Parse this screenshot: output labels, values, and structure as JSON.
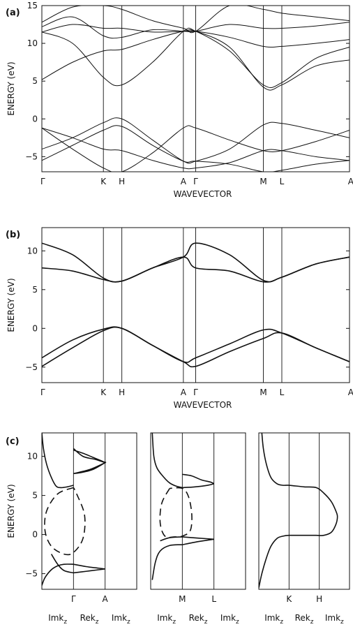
{
  "chart_data": [
    {
      "panel": "(a)",
      "type": "line",
      "xlabel": "WAVEVECTOR",
      "ylabel": "ENERGY (eV)",
      "ylim": [
        -7,
        15
      ],
      "yticks": [
        -5,
        0,
        5,
        10,
        15
      ],
      "kpoints": [
        "Γ",
        "K",
        "H",
        "A",
        "Γ",
        "M",
        "L",
        "A"
      ],
      "kpos": [
        0,
        1,
        1.3,
        2.3,
        2.5,
        3.6,
        3.9,
        5.0
      ],
      "series": [
        {
          "x": [
            0,
            0.5,
            1,
            1.3,
            1.8,
            2.3,
            2.5,
            3.05,
            3.6,
            3.9,
            4.45,
            5.0
          ],
          "y": [
            -1.2,
            -2.5,
            -4,
            -4.2,
            -5.5,
            -6.5,
            -6.5,
            -5.8,
            -4.2,
            -4.2,
            -5,
            -5.5
          ]
        },
        {
          "x": [
            0,
            0.5,
            1,
            1.3,
            1.8,
            2.3,
            2.5,
            3.05,
            3.6,
            3.9,
            4.45,
            5.0
          ],
          "y": [
            -1.2,
            -4,
            -6.5,
            -7,
            -4.5,
            -1.2,
            -1.2,
            -2.8,
            -4.2,
            -4.2,
            -3,
            -1.5
          ]
        },
        {
          "x": [
            0,
            0.5,
            1,
            1.3,
            1.8,
            2.3,
            2.5,
            3.05,
            3.6,
            3.9,
            4.45,
            5.0
          ],
          "y": [
            -4,
            -2.5,
            -0.5,
            0,
            -2.8,
            -5.6,
            -5.6,
            -4,
            -0.8,
            -0.6,
            -1.5,
            -2.5
          ]
        },
        {
          "x": [
            0,
            0.5,
            1,
            1.3,
            1.8,
            2.3,
            2.5,
            3.05,
            3.6,
            3.9,
            4.45,
            5.0
          ],
          "y": [
            -5.5,
            -3.5,
            -1.5,
            -1,
            -3.5,
            -5.6,
            -5.6,
            -6,
            -7,
            -6.8,
            -6,
            -5.5
          ]
        },
        {
          "x": [
            0,
            0.5,
            1,
            1.3,
            1.8,
            2.3,
            2.5,
            3.05,
            3.6,
            3.9,
            4.45,
            5.0
          ],
          "y": [
            5.2,
            7.5,
            9,
            9.2,
            10.5,
            11.6,
            11.6,
            9.5,
            4.2,
            4.5,
            7,
            7.8
          ]
        },
        {
          "x": [
            0,
            0.5,
            1,
            1.3,
            1.8,
            2.3,
            2.5,
            3.05,
            3.6,
            3.9,
            4.45,
            5.0
          ],
          "y": [
            11.5,
            10,
            5.5,
            4.5,
            7.5,
            11.6,
            11.6,
            9,
            4.5,
            4.8,
            8,
            9.5
          ]
        },
        {
          "x": [
            0,
            0.5,
            1,
            1.3,
            1.8,
            2.3,
            2.5,
            3.05,
            3.6,
            3.9,
            4.45,
            5.0
          ],
          "y": [
            11.5,
            12.5,
            12,
            12,
            11.5,
            11.6,
            11.6,
            10.8,
            9.6,
            9.6,
            10,
            10.5
          ]
        },
        {
          "x": [
            0,
            0.5,
            1,
            1.3,
            1.8,
            2.3,
            2.5,
            3.05,
            3.6,
            3.9,
            4.45,
            5.0
          ],
          "y": [
            12.2,
            13.5,
            11,
            10.8,
            11.8,
            11.6,
            11.6,
            12.5,
            12,
            12,
            12.3,
            12.8
          ]
        },
        {
          "x": [
            0,
            0.5,
            1,
            1.3,
            1.8,
            2.3,
            2.5,
            3.05,
            3.6,
            3.9,
            4.45,
            5.0
          ],
          "y": [
            12.8,
            14.8,
            15,
            14.5,
            13,
            12,
            11.6,
            15,
            14.5,
            14,
            13.5,
            13
          ]
        }
      ]
    },
    {
      "panel": "(b)",
      "type": "line",
      "xlabel": "WAVEVECTOR",
      "ylabel": "ENERGY (eV)",
      "ylim": [
        -7,
        13
      ],
      "yticks": [
        -5,
        0,
        5,
        10
      ],
      "kpoints": [
        "Γ",
        "K",
        "H",
        "A",
        "Γ",
        "M",
        "L",
        "A"
      ],
      "kpos": [
        0,
        1,
        1.3,
        2.3,
        2.5,
        3.6,
        3.9,
        5.0
      ],
      "series": [
        {
          "x": [
            0,
            0.5,
            1,
            1.3,
            1.8,
            2.3,
            2.5,
            3.05,
            3.6,
            3.9,
            4.45,
            5.0
          ],
          "y": [
            11,
            9.5,
            6.5,
            6.1,
            7.8,
            9.2,
            11,
            9.5,
            6.2,
            6.6,
            8.3,
            9.2
          ]
        },
        {
          "x": [
            0,
            0.5,
            1,
            1.3,
            1.8,
            2.3,
            2.5,
            3.05,
            3.6,
            3.9,
            4.45,
            5.0
          ],
          "y": [
            7.8,
            7.4,
            6.3,
            6.1,
            7.8,
            9.2,
            7.8,
            7.4,
            6.0,
            6.6,
            8.3,
            9.2
          ]
        },
        {
          "x": [
            0,
            0.5,
            1,
            1.3,
            1.8,
            2.3,
            2.5,
            3.05,
            3.6,
            3.9,
            4.45,
            5.0
          ],
          "y": [
            -3.8,
            -1.5,
            -0.1,
            0,
            -2.2,
            -4.3,
            -3.8,
            -2.0,
            -0.2,
            -0.6,
            -2.5,
            -4.3
          ]
        },
        {
          "x": [
            0,
            0.5,
            1,
            1.3,
            1.8,
            2.3,
            2.5,
            3.05,
            3.6,
            3.9,
            4.45,
            5.0
          ],
          "y": [
            -4.9,
            -2.5,
            -0.3,
            0,
            -2.2,
            -4.3,
            -4.9,
            -3.0,
            -1.3,
            -0.6,
            -2.5,
            -4.3
          ]
        }
      ]
    },
    {
      "panel": "(c)",
      "type": "line",
      "ylabel": "ENERGY (eV)",
      "ylim": [
        -7,
        13
      ],
      "yticks": [
        -5,
        0,
        5,
        10
      ],
      "subpanels": [
        {
          "points": [
            "Γ",
            "A"
          ],
          "columns": [
            "Imk",
            "Rek",
            "Imk"
          ],
          "series": [
            {
              "style": "solid",
              "x": [
                0.0,
                0.05,
                0.15,
                0.3,
                0.45,
                0.6,
                0.8,
                1.0
              ],
              "y": [
                13,
                11,
                9,
                7.3,
                6.2,
                6.0,
                6.1,
                6.3
              ]
            },
            {
              "style": "solid",
              "x": [
                1.0,
                1.3,
                1.6,
                1.9,
                2.0,
                1.7,
                1.3,
                1.0
              ],
              "y": [
                10.8,
                10.4,
                9.9,
                9.4,
                9.2,
                9.6,
                10,
                11
              ]
            },
            {
              "style": "solid",
              "x": [
                1.0,
                1.5,
                1.9,
                2.0,
                1.6,
                1.2,
                1.0
              ],
              "y": [
                7.8,
                8.3,
                9,
                9.2,
                8.3,
                7.9,
                7.8
              ]
            },
            {
              "style": "dashed",
              "x": [
                1.0,
                0.5,
                0.15,
                0.1,
                0.3,
                0.7,
                1.0,
                1.3,
                1.35,
                1.1,
                1.0
              ],
              "y": [
                6.0,
                5.2,
                3,
                0.5,
                -1.5,
                -2.5,
                -2.3,
                -0.5,
                2.5,
                5.2,
                6.0
              ]
            },
            {
              "style": "solid",
              "x": [
                0.0,
                0.1,
                0.3,
                0.5,
                0.7,
                1.0
              ],
              "y": [
                -6.5,
                -5.5,
                -4.5,
                -4.0,
                -3.8,
                -3.8
              ]
            },
            {
              "style": "solid",
              "x": [
                0.3,
                0.5,
                0.7,
                1.0
              ],
              "y": [
                -2.5,
                -3.8,
                -4.6,
                -4.9
              ]
            },
            {
              "style": "solid",
              "x": [
                1.0,
                1.4,
                1.8,
                2.0
              ],
              "y": [
                -3.8,
                -4.1,
                -4.3,
                -4.4
              ]
            },
            {
              "style": "solid",
              "x": [
                1.0,
                1.4,
                1.8,
                2.0
              ],
              "y": [
                -4.9,
                -4.7,
                -4.5,
                -4.4
              ]
            }
          ]
        },
        {
          "points": [
            "M",
            "L"
          ],
          "columns": [
            "Imk",
            "Rek",
            "Imk"
          ],
          "series": [
            {
              "style": "solid",
              "x": [
                0.05,
                0.1,
                0.2,
                0.4,
                0.6,
                0.8,
                1.0
              ],
              "y": [
                13,
                10,
                8.5,
                7.4,
                6.6,
                6.2,
                6.0
              ]
            },
            {
              "style": "solid",
              "x": [
                1.0,
                1.3,
                1.6,
                1.9,
                2.0
              ],
              "y": [
                7.7,
                7.5,
                7.0,
                6.7,
                6.5
              ]
            },
            {
              "style": "solid",
              "x": [
                1.0,
                1.4,
                1.8,
                2.0
              ],
              "y": [
                6.0,
                6.1,
                6.3,
                6.5
              ]
            },
            {
              "style": "dashed",
              "x": [
                0.6,
                0.35,
                0.3,
                0.45,
                0.75,
                1.0,
                1.25,
                1.3,
                1.2,
                1.0,
                0.6
              ],
              "y": [
                5.9,
                4.0,
                1.5,
                -0.2,
                -0.3,
                -0.2,
                0.5,
                2.5,
                4.8,
                5.9,
                5.9
              ]
            },
            {
              "style": "solid",
              "x": [
                0.05,
                0.15,
                0.3,
                0.6,
                1.0
              ],
              "y": [
                -5.8,
                -3.5,
                -2.1,
                -1.4,
                -1.3
              ]
            },
            {
              "style": "solid",
              "x": [
                0.3,
                0.6,
                1.0
              ],
              "y": [
                -0.8,
                -0.4,
                -0.3
              ]
            },
            {
              "style": "solid",
              "x": [
                1.0,
                1.5,
                2.0
              ],
              "y": [
                -1.3,
                -0.9,
                -0.6
              ]
            },
            {
              "style": "solid",
              "x": [
                1.0,
                1.5,
                2.0
              ],
              "y": [
                -0.3,
                -0.45,
                -0.6
              ]
            }
          ]
        },
        {
          "points": [
            "K",
            "H"
          ],
          "columns": [
            "Imk",
            "Rek",
            "Imk"
          ],
          "series": [
            {
              "style": "solid",
              "x": [
                0.1,
                0.15,
                0.25,
                0.4,
                0.6,
                0.8,
                1.0,
                1.5,
                1.9,
                2.15,
                2.4,
                2.55,
                2.6,
                2.55,
                2.4,
                2.15,
                1.9,
                1.5,
                1.0,
                0.8,
                0.6,
                0.4,
                0.25,
                0.1,
                0.0
              ],
              "y": [
                13,
                11,
                9,
                7.3,
                6.5,
                6.3,
                6.3,
                6.1,
                6.0,
                5.3,
                4.2,
                3.0,
                2.3,
                1.3,
                0.3,
                -0.1,
                -0.1,
                -0.1,
                -0.1,
                -0.2,
                -0.5,
                -1.5,
                -3.0,
                -5.0,
                -6.8
              ]
            }
          ]
        }
      ]
    }
  ]
}
